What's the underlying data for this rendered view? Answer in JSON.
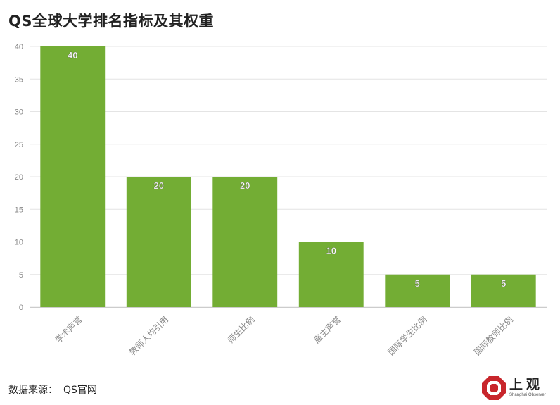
{
  "title": "QS全球大学排名指标及其权重",
  "source": {
    "label": "数据来源：",
    "value": "QS官网"
  },
  "brand": {
    "name": "上观",
    "english": "Shanghai Observer",
    "color": "#c8262c"
  },
  "colors": {
    "bar": "#73ad34",
    "grid": "#e4e4e4",
    "axis_text": "#888888",
    "value_text": "#ffffff"
  },
  "chart_data": {
    "type": "bar",
    "title": "QS全球大学排名指标及其权重",
    "categories": [
      "学术声誉",
      "教师人均引用",
      "师生比例",
      "雇主声誉",
      "国际学生比例",
      "国际教师比例"
    ],
    "values": [
      40,
      20,
      20,
      10,
      5,
      5
    ],
    "xlabel": "",
    "ylabel": "",
    "ylim": [
      0,
      40
    ],
    "yticks": [
      0,
      5,
      10,
      15,
      20,
      25,
      30,
      35,
      40
    ],
    "grid": true,
    "data_labels": true,
    "legend": "none"
  }
}
